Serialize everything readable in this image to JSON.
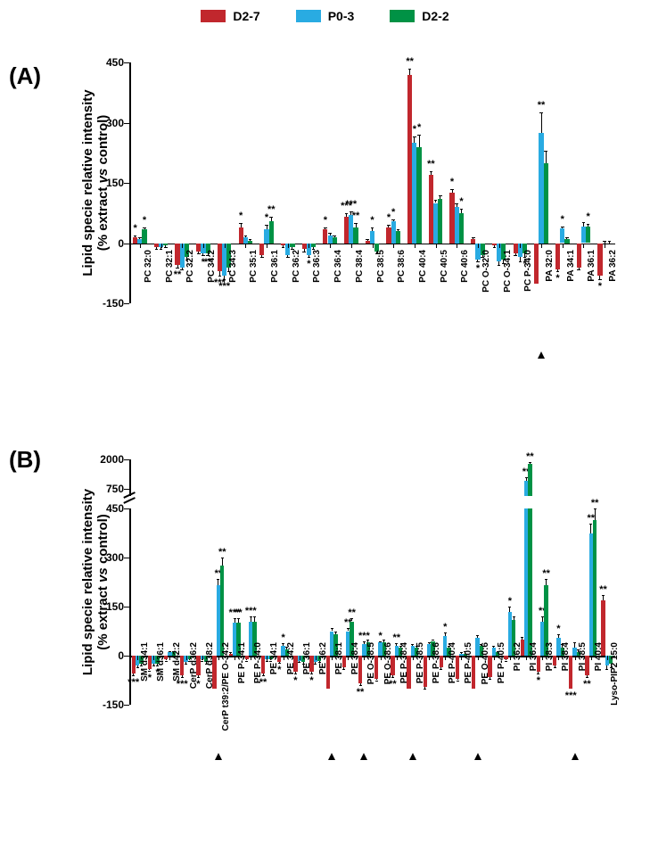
{
  "legend": {
    "items": [
      {
        "label": "D2-7",
        "color": "#c1272d"
      },
      {
        "label": "P0-3",
        "color": "#29abe2"
      },
      {
        "label": "D2-2",
        "color": "#009245"
      }
    ]
  },
  "panelA": {
    "label": "(A)",
    "yaxis_title": "Lipid specie relative intensity\n(% extract vs control)",
    "ylim": [
      -150,
      450
    ],
    "yticks": [
      -150,
      0,
      150,
      300,
      450
    ],
    "categories": [
      "PC 32:0",
      "PC 32:1",
      "PC 32:2",
      "PC 34:2",
      "PC 34:3",
      "PC 35:1",
      "PC 36:1",
      "PC 36:2",
      "PC 36:3",
      "PC 36:4",
      "PC 38:4",
      "PC 38:5",
      "PC 38:6",
      "PC 40:4",
      "PC 40:5",
      "PC 40:6",
      "PC O-32:0",
      "PC O-34:1",
      "PC P-34:0",
      "PA 32:0",
      "PA 34:1",
      "PA 36:1",
      "PA 36:2"
    ],
    "series": [
      {
        "name": "D2-7",
        "color": "#c1272d",
        "values": [
          15,
          -10,
          -55,
          -20,
          -70,
          40,
          -30,
          -5,
          -15,
          35,
          65,
          5,
          40,
          420,
          170,
          125,
          10,
          -5,
          -25,
          -100,
          -65,
          -60,
          -80
        ],
        "err": [
          5,
          5,
          5,
          5,
          10,
          10,
          5,
          5,
          5,
          5,
          10,
          5,
          5,
          15,
          10,
          10,
          5,
          5,
          5,
          0,
          5,
          5,
          10
        ],
        "sig": [
          "*",
          "",
          "**",
          "",
          "***",
          "*",
          "",
          "",
          "",
          "*",
          "***",
          null,
          "*",
          "**",
          "**",
          "*",
          "",
          "",
          "",
          "",
          "*",
          "",
          "*"
        ]
      },
      {
        "name": "P0-3",
        "color": "#29abe2",
        "values": [
          10,
          -10,
          -60,
          -25,
          -80,
          15,
          35,
          -30,
          -30,
          20,
          70,
          30,
          55,
          250,
          100,
          90,
          -40,
          -45,
          -35,
          275,
          36,
          42,
          0
        ],
        "err": [
          5,
          5,
          5,
          5,
          10,
          5,
          10,
          5,
          5,
          5,
          10,
          10,
          5,
          15,
          8,
          10,
          5,
          10,
          10,
          50,
          5,
          10,
          5
        ],
        "sig": [
          "",
          "",
          "",
          "*",
          "***",
          "",
          "*",
          "",
          "*",
          "",
          "***",
          "*",
          "*",
          "*",
          "",
          "",
          "*",
          "",
          "",
          "**",
          "*",
          "",
          ""
        ]
      },
      {
        "name": "D2-2",
        "color": "#009245",
        "values": [
          35,
          -5,
          -35,
          -25,
          -60,
          5,
          55,
          -10,
          -10,
          15,
          40,
          -20,
          30,
          240,
          110,
          75,
          -30,
          -40,
          -25,
          200,
          10,
          42,
          0
        ],
        "err": [
          5,
          5,
          5,
          5,
          10,
          5,
          10,
          5,
          5,
          5,
          10,
          5,
          5,
          30,
          10,
          10,
          5,
          10,
          10,
          30,
          5,
          5,
          5
        ],
        "sig": [
          "*",
          "",
          "",
          "**",
          "",
          "",
          "**",
          "",
          "",
          "",
          "**",
          "",
          "",
          "*",
          "",
          "*",
          "",
          "",
          "*",
          "",
          "",
          "*",
          ""
        ]
      }
    ],
    "arrows": [
      19
    ]
  },
  "panelB": {
    "label": "(B)",
    "yaxis_title": "Lipid specie relative intensity\n(% extract vs control)",
    "ylim_lower": [
      -150,
      450
    ],
    "yticks_lower": [
      -150,
      0,
      150,
      300,
      450
    ],
    "ylim_upper": [
      450,
      2000
    ],
    "yticks_upper": [
      750,
      2000
    ],
    "categories": [
      "SM d34:1",
      "SM d36:1",
      "SM d42:2",
      "CerP d36:2",
      "CerP d38:2",
      "CerP t39:2/PE O-34:2",
      "PE P-34:1",
      "PE P-34:0",
      "PE 34:1",
      "PE 34:2",
      "PE 36:1",
      "PE 36:2",
      "PE 38:1",
      "PE 38:4",
      "PE O-38:5",
      "PE O-38:6",
      "PE P-38:4",
      "PE P-38:5",
      "PE P-38:6",
      "PE P-40:4",
      "PE P-40:5",
      "PE O-40:6",
      "PE P-40:5",
      "PI 36:2",
      "PI 36:4",
      "PI 38:3",
      "PI 38:4",
      "PI 38:5",
      "PI 40:4",
      "Lyso-PIP2 15:0"
    ],
    "series": [
      {
        "name": "D2-7",
        "color": "#c1272d",
        "values": [
          -55,
          -40,
          -10,
          -60,
          -60,
          -100,
          5,
          -10,
          -55,
          -18,
          -50,
          -50,
          -100,
          -35,
          -85,
          -70,
          -60,
          -100,
          -95,
          -35,
          -70,
          -100,
          -65,
          -10,
          50,
          -50,
          -30,
          -100,
          -60,
          170
        ],
        "err": [
          5,
          5,
          5,
          5,
          5,
          0,
          5,
          5,
          5,
          5,
          5,
          5,
          0,
          5,
          5,
          5,
          5,
          0,
          5,
          5,
          5,
          0,
          5,
          5,
          8,
          5,
          5,
          0,
          5,
          15
        ],
        "sig": [
          "***",
          "*",
          "",
          "***",
          "*",
          "",
          "",
          "",
          "**",
          "*",
          "*",
          "*",
          "",
          "",
          "**",
          "",
          "**",
          "",
          "",
          "",
          "",
          "",
          "",
          "",
          "",
          "*",
          "",
          "***",
          "**",
          "**"
        ]
      },
      {
        "name": "P0-3",
        "color": "#29abe2",
        "values": [
          -30,
          -25,
          10,
          -20,
          -10,
          215,
          100,
          105,
          -12,
          30,
          -15,
          -20,
          75,
          75,
          35,
          40,
          30,
          30,
          35,
          60,
          5,
          55,
          25,
          135,
          1100,
          105,
          55,
          25,
          375,
          -30
        ],
        "err": [
          5,
          5,
          5,
          5,
          5,
          20,
          15,
          15,
          5,
          8,
          5,
          5,
          10,
          10,
          8,
          5,
          8,
          5,
          5,
          10,
          5,
          8,
          5,
          15,
          150,
          15,
          10,
          15,
          30,
          10
        ],
        "sig": [
          "",
          "",
          "",
          "",
          "",
          "**",
          "***",
          "***",
          "",
          "*",
          "",
          "",
          "",
          "**",
          "***",
          "*",
          "**",
          "",
          "",
          "*",
          "",
          "",
          "",
          "*",
          "**",
          "**",
          "*",
          "",
          "**",
          ""
        ]
      },
      {
        "name": "D2-2",
        "color": "#009245",
        "values": [
          -25,
          -25,
          10,
          -10,
          -20,
          275,
          100,
          105,
          -10,
          20,
          -20,
          -15,
          65,
          105,
          40,
          40,
          25,
          25,
          45,
          25,
          5,
          30,
          10,
          110,
          1800,
          215,
          25,
          10,
          415,
          -25
        ],
        "err": [
          5,
          5,
          5,
          5,
          5,
          25,
          15,
          15,
          5,
          8,
          5,
          5,
          10,
          10,
          8,
          8,
          5,
          5,
          5,
          5,
          10,
          5,
          5,
          10,
          100,
          20,
          10,
          10,
          35,
          10
        ],
        "sig": [
          "",
          "*",
          "",
          "",
          "",
          "**",
          "**",
          "",
          "",
          "",
          "",
          "",
          "",
          "**",
          "",
          "",
          "",
          "",
          "",
          "",
          "",
          "",
          "",
          "",
          "**",
          "**",
          "",
          "",
          "**",
          ""
        ]
      }
    ],
    "arrows": [
      5,
      12,
      14,
      17,
      21,
      27
    ]
  }
}
